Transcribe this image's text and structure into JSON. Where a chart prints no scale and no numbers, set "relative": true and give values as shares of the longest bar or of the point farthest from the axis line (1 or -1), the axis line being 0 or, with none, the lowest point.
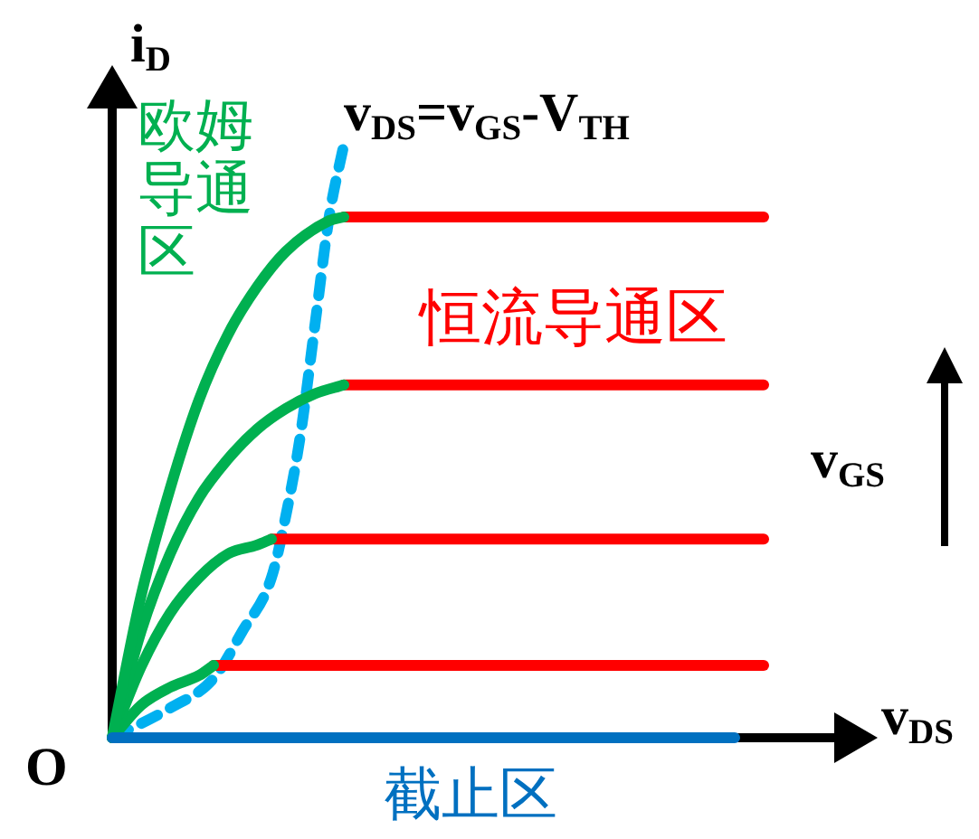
{
  "chart_data": {
    "type": "line",
    "relative": true,
    "marker": "none",
    "xlabel": "v$_{DS}$",
    "ylabel": "i$_{D}$",
    "categories": [
      null,
      null,
      null,
      null,
      null,
      null,
      null,
      null,
      null,
      null,
      null,
      null,
      null,
      null,
      null,
      null,
      null,
      null,
      null,
      null,
      null,
      null,
      null,
      null,
      null,
      null,
      null,
      null,
      null,
      null,
      null,
      null,
      null,
      null,
      null,
      null,
      null,
      null,
      null,
      null,
      null,
      null,
      null,
      null,
      null,
      null,
      null
    ],
    "annotations": [
      "欧姆导通区",
      "恒流导通区",
      "截止区",
      "v$_{DS}$=v$_{GS}$-V$_{TH}$",
      "v$_{GS}$",
      "O"
    ],
    "series": [
      {
        "color": "#0070c0",
        "values": [
          0,
          null,
          null,
          null,
          null,
          null,
          null,
          null,
          null,
          null,
          null,
          null,
          null,
          null,
          null,
          null,
          null,
          null,
          null,
          null,
          null,
          null,
          null,
          null,
          null,
          null,
          null,
          null,
          null,
          null,
          null,
          null,
          null,
          null,
          null,
          null,
          null,
          null,
          null,
          null,
          null,
          null,
          null,
          0,
          null,
          null,
          null
        ]
      },
      {
        "color": "#00b050",
        "values": [
          0,
          null,
          0.24,
          null,
          0.42,
          null,
          0.57,
          null,
          0.68,
          null,
          0.76,
          null,
          0.82,
          null,
          null,
          0.872,
          0.878,
          null,
          null,
          null,
          null,
          null,
          null,
          null,
          null,
          null,
          null,
          null,
          null,
          null,
          null,
          null,
          null,
          null,
          null,
          null,
          null,
          null,
          null,
          null,
          null,
          null,
          null,
          null,
          null,
          null,
          null
        ]
      },
      {
        "color": "#ff0000",
        "values": [
          null,
          null,
          null,
          null,
          null,
          null,
          null,
          null,
          null,
          null,
          null,
          null,
          null,
          null,
          null,
          null,
          0.878,
          null,
          null,
          null,
          null,
          null,
          null,
          null,
          null,
          null,
          null,
          null,
          null,
          null,
          null,
          null,
          null,
          null,
          null,
          null,
          null,
          null,
          null,
          null,
          null,
          null,
          null,
          null,
          null,
          0.878,
          null
        ]
      },
      {
        "color": "#00b050",
        "values": [
          0,
          null,
          0.18,
          null,
          0.31,
          null,
          0.405,
          null,
          0.47,
          null,
          0.52,
          null,
          0.555,
          null,
          0.58,
          null,
          0.595,
          null,
          null,
          null,
          null,
          null,
          null,
          null,
          null,
          null,
          null,
          null,
          null,
          null,
          null,
          null,
          null,
          null,
          null,
          null,
          null,
          null,
          null,
          null,
          null,
          null,
          null,
          null,
          null,
          null,
          null
        ]
      },
      {
        "color": "#ff0000",
        "values": [
          null,
          null,
          null,
          null,
          null,
          null,
          null,
          null,
          null,
          null,
          null,
          null,
          null,
          null,
          null,
          null,
          0.595,
          null,
          null,
          null,
          null,
          null,
          null,
          null,
          null,
          null,
          null,
          null,
          null,
          null,
          null,
          null,
          null,
          null,
          null,
          null,
          null,
          null,
          null,
          null,
          null,
          null,
          null,
          null,
          null,
          0.595,
          null
        ]
      },
      {
        "color": "#00b050",
        "values": [
          0,
          null,
          0.12,
          null,
          0.21,
          null,
          0.27,
          null,
          0.31,
          null,
          0.325,
          0.335,
          null,
          null,
          null,
          null,
          null,
          null,
          null,
          null,
          null,
          null,
          null,
          null,
          null,
          null,
          null,
          null,
          null,
          null,
          null,
          null,
          null,
          null,
          null,
          null,
          null,
          null,
          null,
          null,
          null,
          null,
          null,
          null,
          null,
          null,
          null
        ]
      },
      {
        "color": "#ff0000",
        "values": [
          null,
          null,
          null,
          null,
          null,
          null,
          null,
          null,
          null,
          null,
          null,
          0.335,
          null,
          null,
          null,
          null,
          null,
          null,
          null,
          null,
          null,
          null,
          null,
          null,
          null,
          null,
          null,
          null,
          null,
          null,
          null,
          null,
          null,
          null,
          null,
          null,
          null,
          null,
          null,
          null,
          null,
          null,
          null,
          null,
          null,
          0.335,
          null
        ]
      },
      {
        "color": "#00b050",
        "values": [
          0,
          null,
          0.055,
          null,
          0.085,
          null,
          0.105,
          0.122,
          null,
          null,
          null,
          null,
          null,
          null,
          null,
          null,
          null,
          null,
          null,
          null,
          null,
          null,
          null,
          null,
          null,
          null,
          null,
          null,
          null,
          null,
          null,
          null,
          null,
          null,
          null,
          null,
          null,
          null,
          null,
          null,
          null,
          null,
          null,
          null,
          null,
          null,
          null
        ]
      },
      {
        "color": "#ff0000",
        "values": [
          null,
          null,
          null,
          null,
          null,
          null,
          null,
          0.122,
          null,
          null,
          null,
          null,
          null,
          null,
          null,
          null,
          null,
          null,
          null,
          null,
          null,
          null,
          null,
          null,
          null,
          null,
          null,
          null,
          null,
          null,
          null,
          null,
          null,
          null,
          null,
          null,
          null,
          null,
          null,
          null,
          null,
          null,
          null,
          null,
          null,
          0.122,
          null
        ]
      },
      {
        "color": "#00b0f0",
        "line_style": "dashed",
        "values": [
          0,
          null,
          null,
          null,
          0.05,
          null,
          null,
          0.1,
          null,
          0.18,
          null,
          0.27,
          0.375,
          0.51,
          0.695,
          0.88,
          1,
          null,
          null,
          null,
          null,
          null,
          null,
          null,
          null,
          null,
          null,
          null,
          null,
          null,
          null,
          null,
          null,
          null,
          null,
          null,
          null,
          null,
          null,
          null,
          null,
          null,
          null,
          null,
          null,
          null,
          null
        ]
      }
    ]
  }
}
